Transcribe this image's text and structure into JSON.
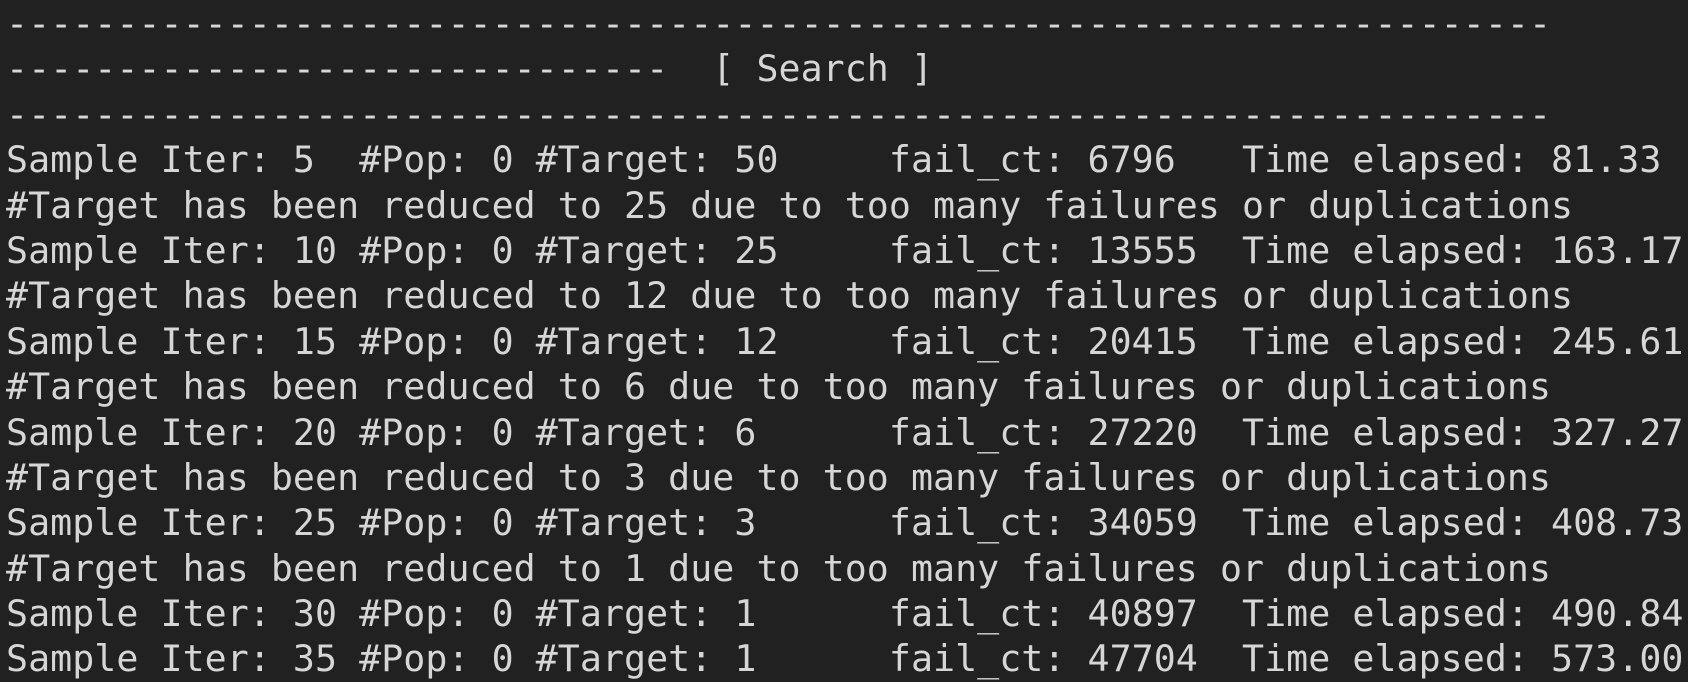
{
  "colors": {
    "background": "#212121",
    "foreground": "#d6d6d6"
  },
  "terminal": {
    "section_header": "[ Search ]",
    "lines": [
      "----------------------------------------------------------------------",
      "------------------------------  [ Search ]",
      "----------------------------------------------------------------------",
      "Sample Iter: 5  #Pop: 0 #Target: 50     fail_ct: 6796   Time elapsed: 81.33",
      "#Target has been reduced to 25 due to too many failures or duplications",
      "Sample Iter: 10 #Pop: 0 #Target: 25     fail_ct: 13555  Time elapsed: 163.17",
      "#Target has been reduced to 12 due to too many failures or duplications",
      "Sample Iter: 15 #Pop: 0 #Target: 12     fail_ct: 20415  Time elapsed: 245.61",
      "#Target has been reduced to 6 due to too many failures or duplications",
      "Sample Iter: 20 #Pop: 0 #Target: 6      fail_ct: 27220  Time elapsed: 327.27",
      "#Target has been reduced to 3 due to too many failures or duplications",
      "Sample Iter: 25 #Pop: 0 #Target: 3      fail_ct: 34059  Time elapsed: 408.73",
      "#Target has been reduced to 1 due to too many failures or duplications",
      "Sample Iter: 30 #Pop: 0 #Target: 1      fail_ct: 40897  Time elapsed: 490.84",
      "Sample Iter: 35 #Pop: 0 #Target: 1      fail_ct: 47704  Time elapsed: 573.00"
    ],
    "samples": [
      {
        "iter": 5,
        "pop": 0,
        "target": 50,
        "fail_ct": 6796,
        "time_elapsed": 81.33
      },
      {
        "iter": 10,
        "pop": 0,
        "target": 25,
        "fail_ct": 13555,
        "time_elapsed": 163.17
      },
      {
        "iter": 15,
        "pop": 0,
        "target": 12,
        "fail_ct": 20415,
        "time_elapsed": 245.61
      },
      {
        "iter": 20,
        "pop": 0,
        "target": 6,
        "fail_ct": 27220,
        "time_elapsed": 327.27
      },
      {
        "iter": 25,
        "pop": 0,
        "target": 3,
        "fail_ct": 34059,
        "time_elapsed": 408.73
      },
      {
        "iter": 30,
        "pop": 0,
        "target": 1,
        "fail_ct": 40897,
        "time_elapsed": 490.84
      },
      {
        "iter": 35,
        "pop": 0,
        "target": 1,
        "fail_ct": 47704,
        "time_elapsed": 573.0
      }
    ],
    "reduction_messages": [
      "#Target has been reduced to 25 due to too many failures or duplications",
      "#Target has been reduced to 12 due to too many failures or duplications",
      "#Target has been reduced to 6 due to too many failures or duplications",
      "#Target has been reduced to 3 due to too many failures or duplications",
      "#Target has been reduced to 1 due to too many failures or duplications"
    ]
  }
}
